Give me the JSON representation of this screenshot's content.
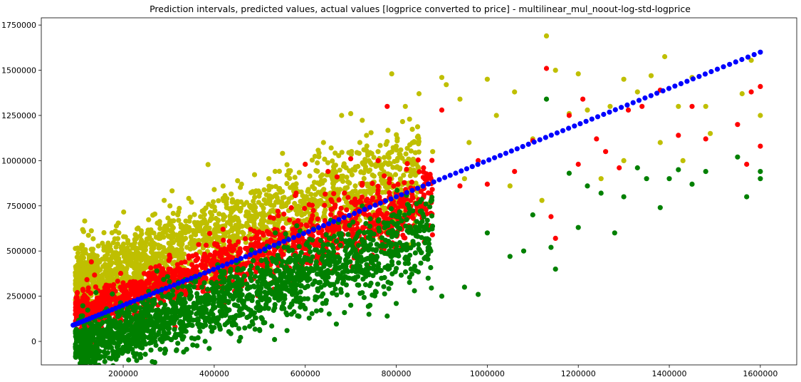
{
  "chart_data": {
    "type": "scatter",
    "title": "Prediction intervals, predicted values, actual values [logprice converted to price] - multilinear_mul_noout-log-std-logprice",
    "xlabel": "",
    "ylabel": "",
    "xlim": [
      20000,
      1680000
    ],
    "ylim": [
      -130000,
      1790000
    ],
    "x_ticks": [
      200000,
      400000,
      600000,
      800000,
      1000000,
      1200000,
      1400000,
      1600000
    ],
    "x_tick_labels": [
      "200000",
      "400000",
      "600000",
      "800000",
      "1000000",
      "1200000",
      "1400000",
      "1600000"
    ],
    "y_ticks": [
      0,
      250000,
      500000,
      750000,
      1000000,
      1250000,
      1500000,
      1750000
    ],
    "y_tick_labels": [
      "0",
      "250000",
      "500000",
      "750000",
      "1000000",
      "1250000",
      "1500000",
      "1750000"
    ],
    "grid": false,
    "legend": "none",
    "series": [
      {
        "color": "#bfbf00",
        "points": [
          [
            95000,
            380000
          ],
          [
            110000,
            395000
          ],
          [
            140000,
            440000
          ],
          [
            130000,
            612000
          ],
          [
            160000,
            470000
          ],
          [
            180000,
            490000
          ],
          [
            200000,
            520000
          ],
          [
            220000,
            470000
          ],
          [
            240000,
            560000
          ],
          [
            260000,
            600000
          ],
          [
            290000,
            780000
          ],
          [
            300000,
            580000
          ],
          [
            320000,
            700000
          ],
          [
            350000,
            770000
          ],
          [
            370000,
            690000
          ],
          [
            380000,
            620000
          ],
          [
            400000,
            840000
          ],
          [
            420000,
            700000
          ],
          [
            450000,
            760000
          ],
          [
            460000,
            870000
          ],
          [
            480000,
            740000
          ],
          [
            500000,
            820000
          ],
          [
            520000,
            900000
          ],
          [
            540000,
            780000
          ],
          [
            550000,
            1040000
          ],
          [
            560000,
            920000
          ],
          [
            600000,
            980000
          ],
          [
            620000,
            880000
          ],
          [
            640000,
            1100000
          ],
          [
            660000,
            940000
          ],
          [
            680000,
            1250000
          ],
          [
            700000,
            1260000
          ],
          [
            720000,
            1100000
          ],
          [
            740000,
            1000000
          ],
          [
            760000,
            1050000
          ],
          [
            790000,
            1480000
          ],
          [
            800000,
            1080000
          ],
          [
            820000,
            1300000
          ],
          [
            850000,
            1370000
          ],
          [
            880000,
            1050000
          ],
          [
            900000,
            1460000
          ],
          [
            910000,
            1420000
          ],
          [
            940000,
            1340000
          ],
          [
            960000,
            1100000
          ],
          [
            1000000,
            1450000
          ],
          [
            1020000,
            1250000
          ],
          [
            1060000,
            1380000
          ],
          [
            1100000,
            1120000
          ],
          [
            1130000,
            1690000
          ],
          [
            1150000,
            1500000
          ],
          [
            1180000,
            1260000
          ],
          [
            1200000,
            1480000
          ],
          [
            1220000,
            1280000
          ],
          [
            1270000,
            1300000
          ],
          [
            1300000,
            1450000
          ],
          [
            1330000,
            1380000
          ],
          [
            1360000,
            1470000
          ],
          [
            1390000,
            1575000
          ],
          [
            1420000,
            1300000
          ],
          [
            1450000,
            1460000
          ],
          [
            1480000,
            1300000
          ],
          [
            1560000,
            1370000
          ],
          [
            1580000,
            1555000
          ],
          [
            1600000,
            1250000
          ],
          [
            230000,
            360000
          ],
          [
            280000,
            470000
          ],
          [
            340000,
            520000
          ],
          [
            410000,
            610000
          ],
          [
            470000,
            640000
          ],
          [
            530000,
            660000
          ],
          [
            590000,
            720000
          ],
          [
            650000,
            790000
          ],
          [
            710000,
            860000
          ],
          [
            770000,
            900000
          ],
          [
            830000,
            950000
          ],
          [
            870000,
            760000
          ],
          [
            950000,
            900000
          ],
          [
            1050000,
            860000
          ],
          [
            1120000,
            780000
          ],
          [
            1250000,
            900000
          ],
          [
            1300000,
            1000000
          ],
          [
            1380000,
            1100000
          ],
          [
            1430000,
            1000000
          ],
          [
            1490000,
            1150000
          ]
        ],
        "band": {
          "slope": 0.8,
          "intercept": 268000,
          "spread": 110000,
          "count": 1800,
          "x_range": [
            95000,
            850000
          ],
          "seed": 11
        }
      },
      {
        "color": "#ff0000",
        "points": [
          [
            95000,
            150000
          ],
          [
            110000,
            210000
          ],
          [
            130000,
            440000
          ],
          [
            150000,
            200000
          ],
          [
            180000,
            250000
          ],
          [
            240000,
            330000
          ],
          [
            300000,
            400000
          ],
          [
            360000,
            480000
          ],
          [
            420000,
            560000
          ],
          [
            480000,
            620000
          ],
          [
            540000,
            720000
          ],
          [
            580000,
            820000
          ],
          [
            600000,
            980000
          ],
          [
            650000,
            940000
          ],
          [
            700000,
            1010000
          ],
          [
            760000,
            1000000
          ],
          [
            780000,
            1300000
          ],
          [
            800000,
            820000
          ],
          [
            860000,
            960000
          ],
          [
            900000,
            1280000
          ],
          [
            940000,
            860000
          ],
          [
            980000,
            1000000
          ],
          [
            1000000,
            870000
          ],
          [
            1060000,
            940000
          ],
          [
            1100000,
            1110000
          ],
          [
            1130000,
            1510000
          ],
          [
            1140000,
            690000
          ],
          [
            1150000,
            570000
          ],
          [
            1180000,
            1250000
          ],
          [
            1200000,
            980000
          ],
          [
            1210000,
            1340000
          ],
          [
            1240000,
            1120000
          ],
          [
            1260000,
            1050000
          ],
          [
            1290000,
            960000
          ],
          [
            1310000,
            1280000
          ],
          [
            1340000,
            1300000
          ],
          [
            1380000,
            1390000
          ],
          [
            1420000,
            1140000
          ],
          [
            1450000,
            1300000
          ],
          [
            1480000,
            1120000
          ],
          [
            1550000,
            1200000
          ],
          [
            1570000,
            980000
          ],
          [
            1580000,
            1380000
          ],
          [
            1600000,
            1410000
          ],
          [
            1600000,
            1080000
          ]
        ],
        "band": {
          "slope": 0.8,
          "intercept": 78000,
          "spread": 75000,
          "count": 1500,
          "x_range": [
            95000,
            880000
          ],
          "seed": 23
        }
      },
      {
        "color": "#008000",
        "points": [
          [
            95000,
            -30000
          ],
          [
            110000,
            30000
          ],
          [
            140000,
            270000
          ],
          [
            170000,
            -10000
          ],
          [
            200000,
            20000
          ],
          [
            240000,
            -10000
          ],
          [
            300000,
            100000
          ],
          [
            380000,
            0
          ],
          [
            440000,
            90000
          ],
          [
            500000,
            60000
          ],
          [
            560000,
            60000
          ],
          [
            600000,
            180000
          ],
          [
            650000,
            320000
          ],
          [
            700000,
            200000
          ],
          [
            740000,
            150000
          ],
          [
            780000,
            140000
          ],
          [
            800000,
            210000
          ],
          [
            840000,
            280000
          ],
          [
            870000,
            350000
          ],
          [
            900000,
            250000
          ],
          [
            950000,
            300000
          ],
          [
            980000,
            260000
          ],
          [
            1000000,
            600000
          ],
          [
            1050000,
            470000
          ],
          [
            1080000,
            500000
          ],
          [
            1100000,
            700000
          ],
          [
            1130000,
            1340000
          ],
          [
            1140000,
            520000
          ],
          [
            1150000,
            400000
          ],
          [
            1180000,
            930000
          ],
          [
            1200000,
            630000
          ],
          [
            1220000,
            860000
          ],
          [
            1250000,
            820000
          ],
          [
            1280000,
            600000
          ],
          [
            1300000,
            800000
          ],
          [
            1330000,
            960000
          ],
          [
            1350000,
            900000
          ],
          [
            1380000,
            740000
          ],
          [
            1400000,
            900000
          ],
          [
            1420000,
            950000
          ],
          [
            1450000,
            870000
          ],
          [
            1480000,
            940000
          ],
          [
            1550000,
            1020000
          ],
          [
            1570000,
            800000
          ],
          [
            1600000,
            940000
          ],
          [
            1600000,
            900000
          ]
        ],
        "band": {
          "slope": 0.8,
          "intercept": -115000,
          "spread": 95000,
          "count": 1800,
          "x_range": [
            95000,
            880000
          ],
          "seed": 37
        }
      },
      {
        "color": "#0000ff",
        "line": {
          "x_start": 90000,
          "x_end": 1600000,
          "slope": 1.0,
          "intercept": 0,
          "count": 140
        }
      }
    ]
  }
}
